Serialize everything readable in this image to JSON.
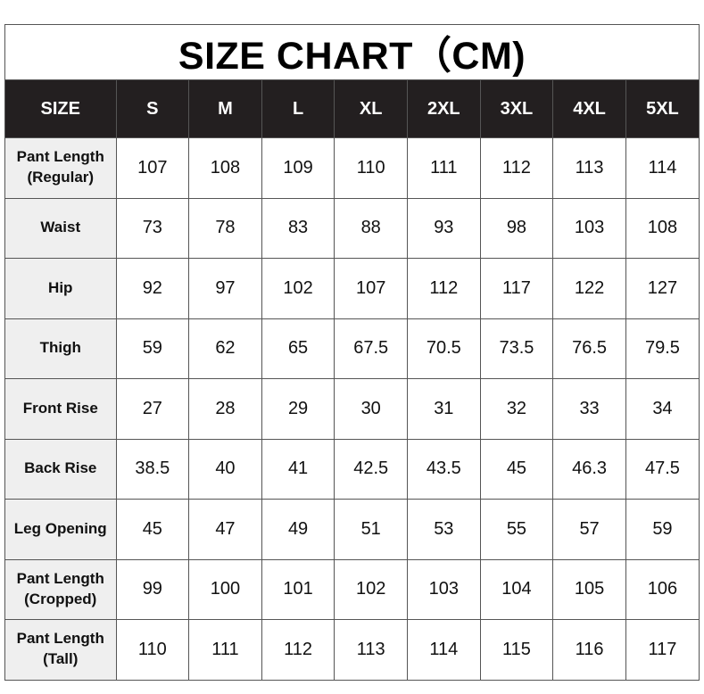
{
  "title": "SIZE CHART（CM)",
  "header": [
    "SIZE",
    "S",
    "M",
    "L",
    "XL",
    "2XL",
    "3XL",
    "4XL",
    "5XL"
  ],
  "rows": [
    {
      "label": "Pant Length\n(Regular)",
      "values": [
        "107",
        "108",
        "109",
        "110",
        "111",
        "112",
        "113",
        "114"
      ]
    },
    {
      "label": "Waist",
      "values": [
        "73",
        "78",
        "83",
        "88",
        "93",
        "98",
        "103",
        "108"
      ]
    },
    {
      "label": "Hip",
      "values": [
        "92",
        "97",
        "102",
        "107",
        "112",
        "117",
        "122",
        "127"
      ]
    },
    {
      "label": "Thigh",
      "values": [
        "59",
        "62",
        "65",
        "67.5",
        "70.5",
        "73.5",
        "76.5",
        "79.5"
      ]
    },
    {
      "label": "Front Rise",
      "values": [
        "27",
        "28",
        "29",
        "30",
        "31",
        "32",
        "33",
        "34"
      ]
    },
    {
      "label": "Back Rise",
      "values": [
        "38.5",
        "40",
        "41",
        "42.5",
        "43.5",
        "45",
        "46.3",
        "47.5"
      ]
    },
    {
      "label": "Leg Opening",
      "values": [
        "45",
        "47",
        "49",
        "51",
        "53",
        "55",
        "57",
        "59"
      ]
    },
    {
      "label": "Pant Length\n(Cropped)",
      "values": [
        "99",
        "100",
        "101",
        "102",
        "103",
        "104",
        "105",
        "106"
      ]
    },
    {
      "label": "Pant Length\n(Tall)",
      "values": [
        "110",
        "111",
        "112",
        "113",
        "114",
        "115",
        "116",
        "117"
      ]
    }
  ],
  "colors": {
    "header_bg": "#231f20",
    "label_bg": "#efefef",
    "border": "#555555"
  }
}
